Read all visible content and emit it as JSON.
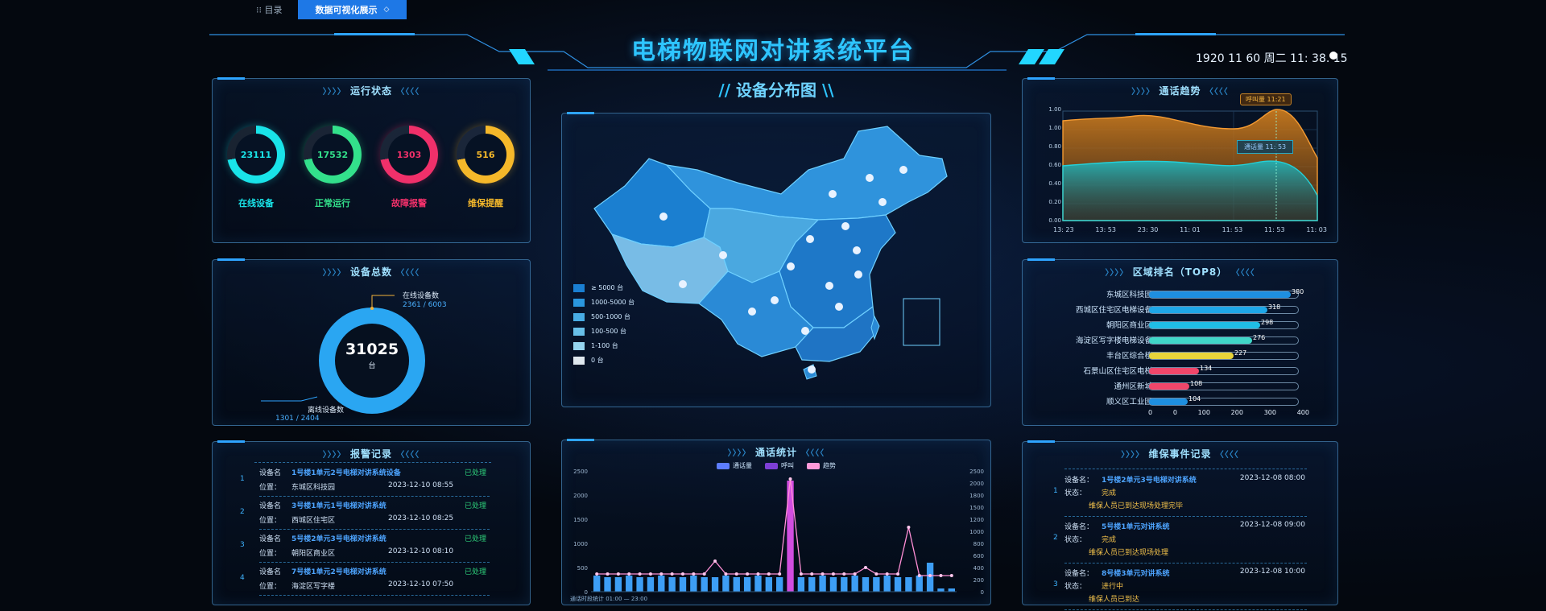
{
  "topbar": {
    "tab_label": "⁝⁝ 目录",
    "active_button": "数据可视化展示"
  },
  "header": {
    "title": "电梯物联网对讲系统平台",
    "datetime": "1920 11 60 周二 11: 38. 15"
  },
  "center_map": {
    "title": "设备分布图",
    "legend": [
      {
        "label": "≥ 5000 台",
        "color": "#1a7fd2"
      },
      {
        "label": "1000-5000 台",
        "color": "#2a96dd"
      },
      {
        "label": "500-1000 台",
        "color": "#48ace4"
      },
      {
        "label": "100-500 台",
        "color": "#68bfe8"
      },
      {
        "label": "1-100 台",
        "color": "#95d4ef"
      },
      {
        "label": "0 台",
        "color": "#dfe8ee"
      }
    ]
  },
  "status_panel": {
    "title": "运行状态",
    "rings": [
      {
        "value": "23111",
        "label": "在线设备",
        "color": "#19e3e8"
      },
      {
        "value": "17532",
        "label": "正常运行",
        "color": "#33e08b"
      },
      {
        "value": "1303",
        "label": "故障报警",
        "color": "#f0306a"
      },
      {
        "value": "516",
        "label": "维保提醒",
        "color": "#f5b82a"
      }
    ]
  },
  "total_panel": {
    "title": "设备总数",
    "total": "31025",
    "unit": "台",
    "top_label": "在线设备数",
    "top_value": "2361 / 6003",
    "bottom_label": "离线设备数",
    "bottom_value": "1301 / 2404"
  },
  "records_panel": {
    "title": "报警记录",
    "rows": [
      {
        "idx": "1",
        "k1": "设备名",
        "v1": "1号楼1单元2号电梯对讲系统设备",
        "k2": "位置：",
        "v2": "东城区科技园",
        "time": "2023-12-10 08:55",
        "state": "已处理"
      },
      {
        "idx": "2",
        "k1": "设备名",
        "v1": "3号楼1单元1号电梯对讲系统",
        "k2": "位置：",
        "v2": "西城区住宅区",
        "time": "2023-12-10 08:25",
        "state": "已处理"
      },
      {
        "idx": "3",
        "k1": "设备名",
        "v1": "5号楼2单元3号电梯对讲系统",
        "k2": "位置：",
        "v2": "朝阳区商业区",
        "time": "2023-12-10 08:10",
        "state": "已处理"
      },
      {
        "idx": "4",
        "k1": "设备名",
        "v1": "7号楼1单元2号电梯对讲系统",
        "k2": "位置：",
        "v2": "海淀区写字楼",
        "time": "2023-12-10 07:50",
        "state": "已处理"
      }
    ]
  },
  "trend_panel": {
    "title": "通话趋势",
    "x_ticks": [
      "13: 23",
      "13: 53",
      "23: 30",
      "11: 01",
      "11: 53",
      "11: 53",
      "11: 03"
    ],
    "y_ticks": [
      "1.00",
      "1.00",
      "0.80",
      "0.60",
      "0.40",
      "0.20",
      "0.00"
    ],
    "tooltip_top": "呼叫量 11:21",
    "tooltip_mid": "通话量 11: 53"
  },
  "rank_panel": {
    "title": "区域排名（TOP8）",
    "axis": [
      "0",
      "0",
      "100",
      "200",
      "300",
      "400"
    ],
    "rows": [
      {
        "label": "东城区科技园",
        "value": 380,
        "shown": "380",
        "color": "#1e8fe0"
      },
      {
        "label": "西城区住宅区电梯设备",
        "value": 318,
        "shown": "318",
        "color": "#1ea7e8"
      },
      {
        "label": "朝阳区商业区",
        "value": 298,
        "shown": "298",
        "color": "#20bde6"
      },
      {
        "label": "海淀区写字楼电梯设备",
        "value": 276,
        "shown": "276",
        "color": "#3fd6c8"
      },
      {
        "label": "丰台区综合楼",
        "value": 227,
        "shown": "227",
        "color": "#e8d43a"
      },
      {
        "label": "石景山区住宅区电梯",
        "value": 134,
        "shown": "134",
        "color": "#f0466a"
      },
      {
        "label": "通州区新城",
        "value": 108,
        "shown": "108",
        "color": "#f0466a"
      },
      {
        "label": "顺义区工业园",
        "value": 104,
        "shown": "104",
        "color": "#1e8fe0"
      }
    ]
  },
  "events_panel": {
    "title": "维保事件记录",
    "rows": [
      {
        "idx": "1",
        "k": "设备名：",
        "v": "1号楼2单元3号电梯对讲系统",
        "time": "2023-12-08 08:00",
        "k2": "状态：",
        "v2": "完成",
        "note": "维保人员已到达现场处理完毕"
      },
      {
        "idx": "2",
        "k": "设备名：",
        "v": "5号楼1单元对讲系统",
        "time": "2023-12-08 09:00",
        "k2": "状态：",
        "v2": "完成",
        "note": "维保人员已到达现场处理"
      },
      {
        "idx": "3",
        "k": "设备名：",
        "v": "8号楼3单元对讲系统",
        "time": "2023-12-08 10:00",
        "k2": "状态：",
        "v2": "进行中",
        "note": "维保人员已到达"
      }
    ]
  },
  "calls_panel": {
    "title": "通话统计",
    "legend": [
      {
        "label": "通话量",
        "color": "#5d7dff"
      },
      {
        "label": "呼叫",
        "color": "#7d3fd6"
      },
      {
        "label": "趋势",
        "color": "#ff9ad9"
      }
    ],
    "y_left": [
      "2500",
      "2000",
      "1500",
      "1000",
      "500",
      "0"
    ],
    "y_right": [
      "2500",
      "2000",
      "1800",
      "1500",
      "1200",
      "1000",
      "800",
      "600",
      "400",
      "200",
      "0"
    ],
    "x_caption": "通话时段统计 01:00 — 23:00"
  }
}
